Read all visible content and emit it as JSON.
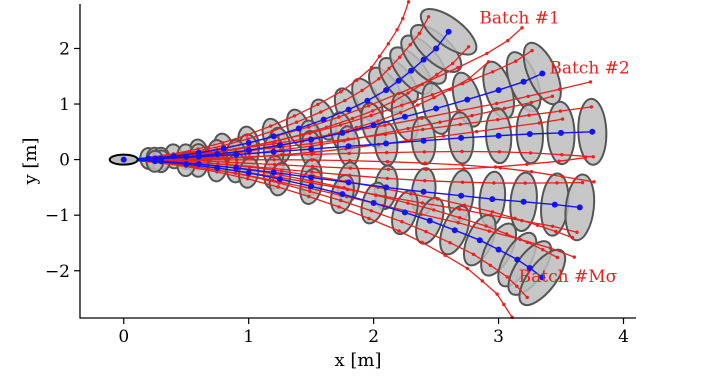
{
  "chart_data": {
    "type": "scatter",
    "xlabel": "x [m]",
    "ylabel": "y [m]",
    "xlim": [
      -0.35,
      4.1
    ],
    "ylim": [
      -2.85,
      2.8
    ],
    "xticks": [
      0,
      1,
      2,
      3,
      4
    ],
    "yticks": [
      -2,
      -1,
      0,
      1,
      2
    ],
    "xtick_labels": [
      "0",
      "1",
      "2",
      "3",
      "4"
    ],
    "ytick_labels": [
      "−2",
      "−1",
      "0",
      "1",
      "2"
    ],
    "grid": false,
    "annotations": [
      {
        "text": "Batch #1",
        "x": 3.49,
        "y": 2.45
      },
      {
        "text": "Batch #2",
        "x": 4.05,
        "y": 1.55
      },
      {
        "text": "Batch #Mσ",
        "x": 3.95,
        "y": -2.2
      }
    ],
    "colors": {
      "mean": "#1414f0",
      "samples": "#e8211f",
      "ellipse_fill": "#bdbdbd",
      "ellipse_edge": "#555555"
    },
    "series": [
      {
        "x": [
          0,
          0.2,
          0.4,
          0.6,
          0.8,
          1.0,
          1.2,
          1.4,
          1.6,
          1.8,
          1.95,
          2.1,
          2.2,
          2.3,
          2.4,
          2.5,
          2.6
        ],
        "y": [
          0,
          0.02,
          0.06,
          0.12,
          0.2,
          0.3,
          0.42,
          0.56,
          0.72,
          0.9,
          1.06,
          1.25,
          1.42,
          1.6,
          1.8,
          2.0,
          2.3
        ]
      },
      {
        "x": [
          0,
          0.25,
          0.5,
          0.75,
          1.0,
          1.25,
          1.5,
          1.75,
          2.0,
          2.25,
          2.5,
          2.75,
          3.0,
          3.2,
          3.35
        ],
        "y": [
          0,
          0.02,
          0.05,
          0.1,
          0.17,
          0.26,
          0.36,
          0.48,
          0.62,
          0.77,
          0.92,
          1.08,
          1.25,
          1.4,
          1.55
        ]
      },
      {
        "x": [
          0,
          0.3,
          0.6,
          0.9,
          1.2,
          1.5,
          1.8,
          2.1,
          2.4,
          2.7,
          3.0,
          3.25,
          3.5,
          3.75
        ],
        "y": [
          0,
          0.02,
          0.05,
          0.09,
          0.14,
          0.19,
          0.24,
          0.29,
          0.34,
          0.39,
          0.43,
          0.46,
          0.48,
          0.5
        ]
      },
      {
        "x": [
          0,
          0.3,
          0.6,
          0.9,
          1.2,
          1.5,
          1.8,
          2.1,
          2.4,
          2.7,
          2.95,
          3.2,
          3.45,
          3.65
        ],
        "y": [
          0,
          -0.03,
          -0.08,
          -0.15,
          -0.23,
          -0.32,
          -0.41,
          -0.5,
          -0.58,
          -0.65,
          -0.71,
          -0.76,
          -0.81,
          -0.86
        ]
      },
      {
        "x": [
          0,
          0.25,
          0.5,
          0.75,
          1.0,
          1.25,
          1.5,
          1.75,
          2.0,
          2.25,
          2.45,
          2.65,
          2.85,
          3.0,
          3.15,
          3.25,
          3.35
        ],
        "y": [
          0,
          -0.03,
          -0.08,
          -0.15,
          -0.24,
          -0.35,
          -0.48,
          -0.62,
          -0.78,
          -0.95,
          -1.1,
          -1.27,
          -1.45,
          -1.62,
          -1.8,
          -1.95,
          -2.12
        ]
      }
    ]
  }
}
